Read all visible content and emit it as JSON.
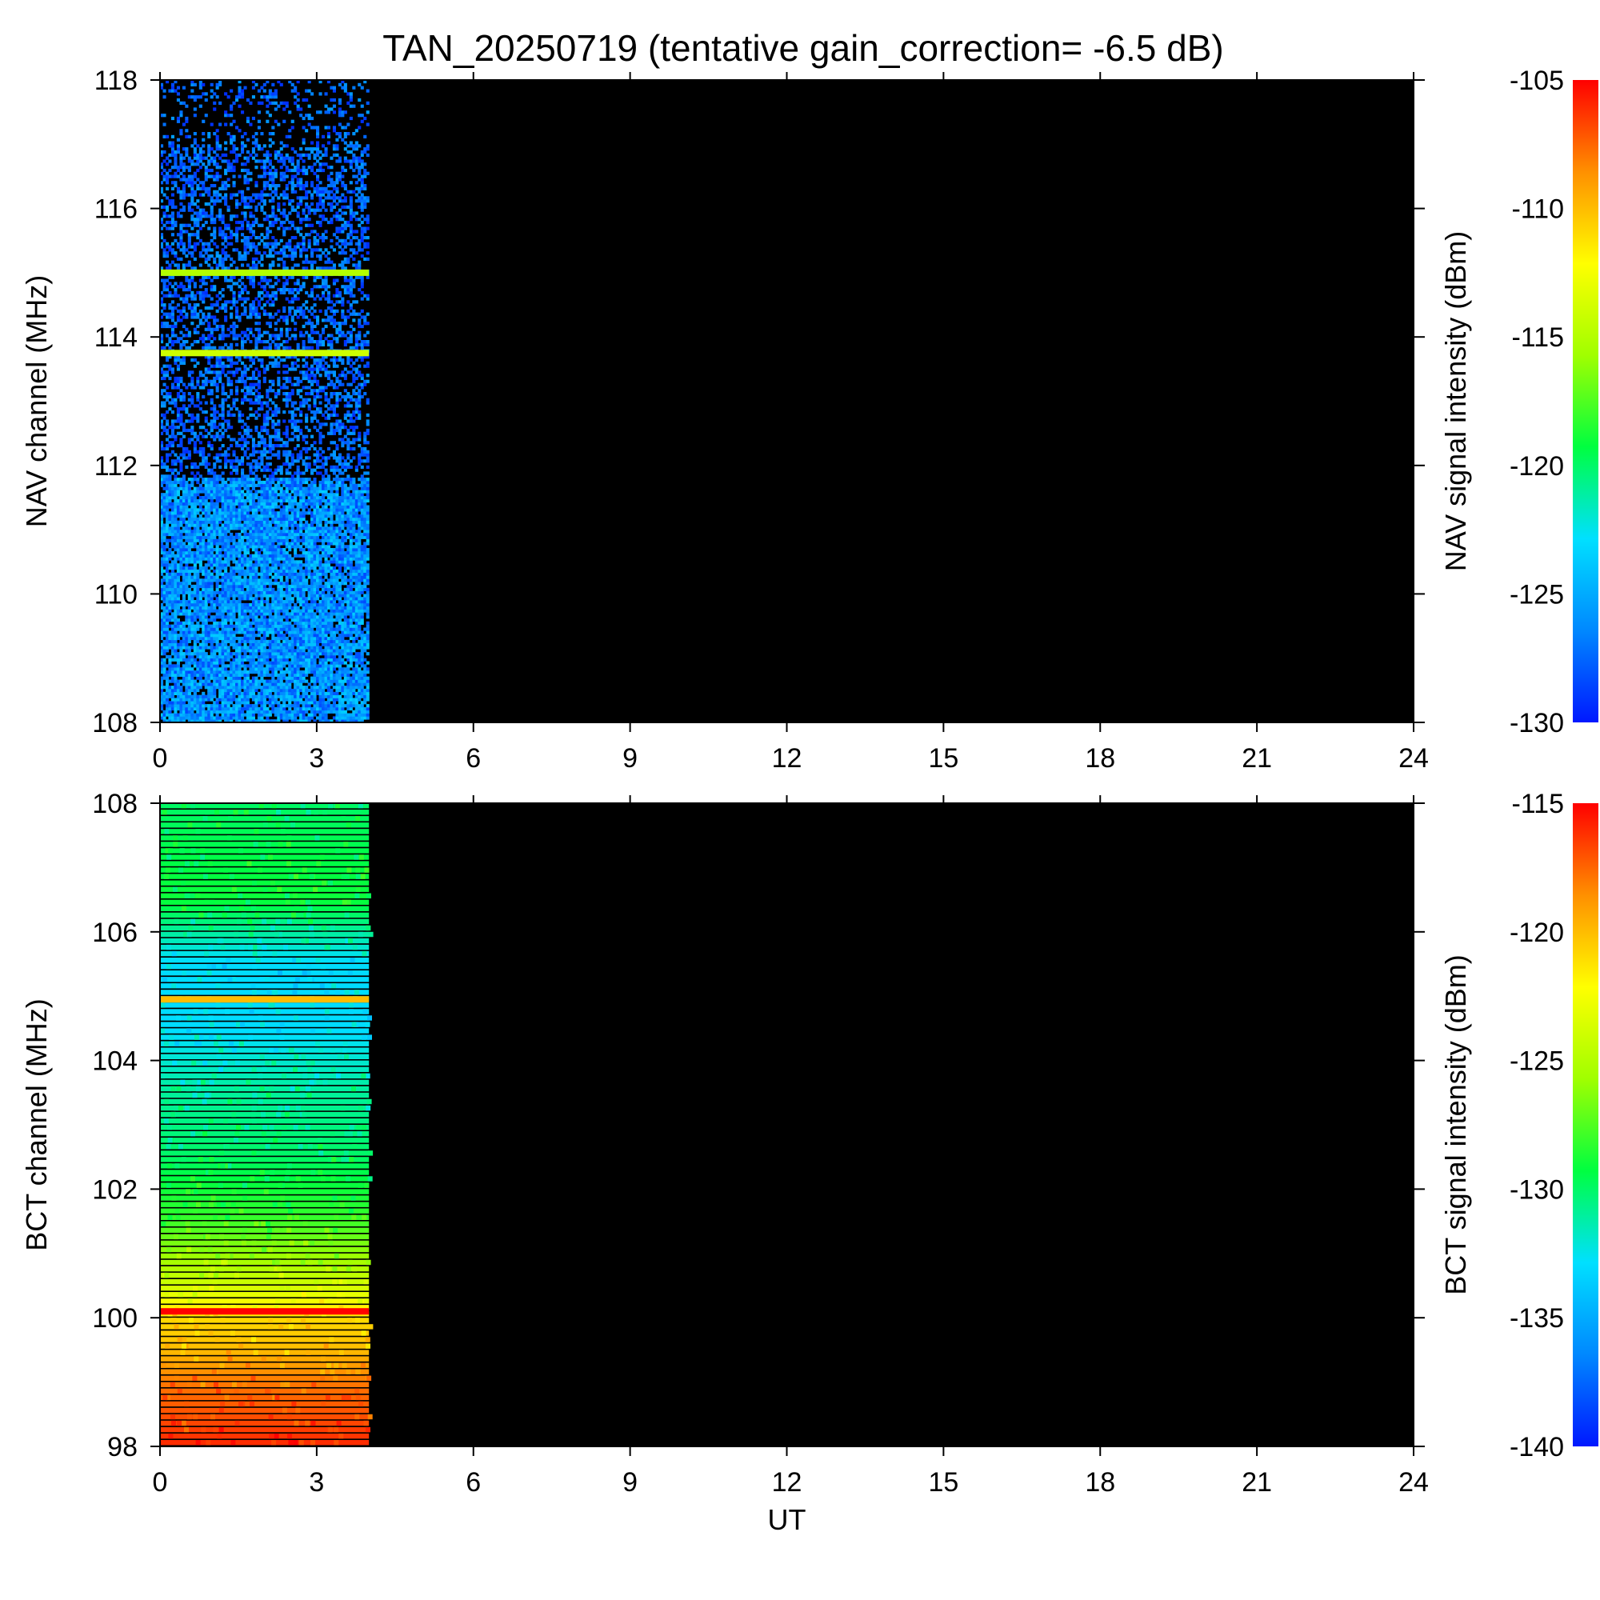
{
  "title": "TAN_20250719 (tentative gain_correction= -6.5 dB)",
  "colormap": [
    "#0018ff",
    "#0088ff",
    "#00e0ff",
    "#00ff40",
    "#a0ff00",
    "#ffff00",
    "#ff9000",
    "#ff0000"
  ],
  "background_color": "#000000",
  "chart_data": [
    {
      "type": "heatmap",
      "panel": "top",
      "xlabel": "",
      "ylabel": "NAV channel (MHz)",
      "colorbar_label": "NAV signal intensity (dBm)",
      "xlim": [
        0,
        24
      ],
      "ylim": [
        108,
        118
      ],
      "clim": [
        -130,
        -105
      ],
      "xticks": [
        0,
        3,
        6,
        9,
        12,
        15,
        18,
        21,
        24
      ],
      "yticks": [
        108,
        110,
        112,
        114,
        116,
        118
      ],
      "cticks": [
        -130,
        -125,
        -120,
        -115,
        -110,
        -105
      ],
      "data_x_range": [
        0,
        4
      ],
      "bands": [
        {
          "y": [
            108.0,
            111.8
          ],
          "level": -128.5
        },
        {
          "y": [
            111.8,
            118.0
          ],
          "level": -129.5
        }
      ],
      "strong_lines": [
        {
          "y": 115.0,
          "level": -115
        },
        {
          "y": 113.75,
          "level": -114
        }
      ]
    },
    {
      "type": "heatmap",
      "panel": "bottom",
      "xlabel": "UT",
      "ylabel": "BCT channel (MHz)",
      "colorbar_label": "BCT signal intensity (dBm)",
      "xlim": [
        0,
        24
      ],
      "ylim": [
        98,
        108
      ],
      "clim": [
        -140,
        -115
      ],
      "xticks": [
        0,
        3,
        6,
        9,
        12,
        15,
        18,
        21,
        24
      ],
      "yticks": [
        98,
        100,
        102,
        104,
        106,
        108
      ],
      "cticks": [
        -140,
        -135,
        -130,
        -125,
        -120,
        -115
      ],
      "data_x_range": [
        0,
        4
      ],
      "profile": [
        {
          "y": 98.0,
          "level": -116
        },
        {
          "y": 99.0,
          "level": -118
        },
        {
          "y": 99.5,
          "level": -120
        },
        {
          "y": 100.0,
          "level": -121
        },
        {
          "y": 100.5,
          "level": -124
        },
        {
          "y": 101.5,
          "level": -128
        },
        {
          "y": 102.5,
          "level": -130
        },
        {
          "y": 103.5,
          "level": -131
        },
        {
          "y": 104.5,
          "level": -133
        },
        {
          "y": 105.5,
          "level": -133
        },
        {
          "y": 106.5,
          "level": -129
        },
        {
          "y": 108.0,
          "level": -130
        }
      ],
      "strong_lines": [
        {
          "y": 100.1,
          "level": -115
        },
        {
          "y": 104.95,
          "level": -120
        }
      ]
    }
  ]
}
